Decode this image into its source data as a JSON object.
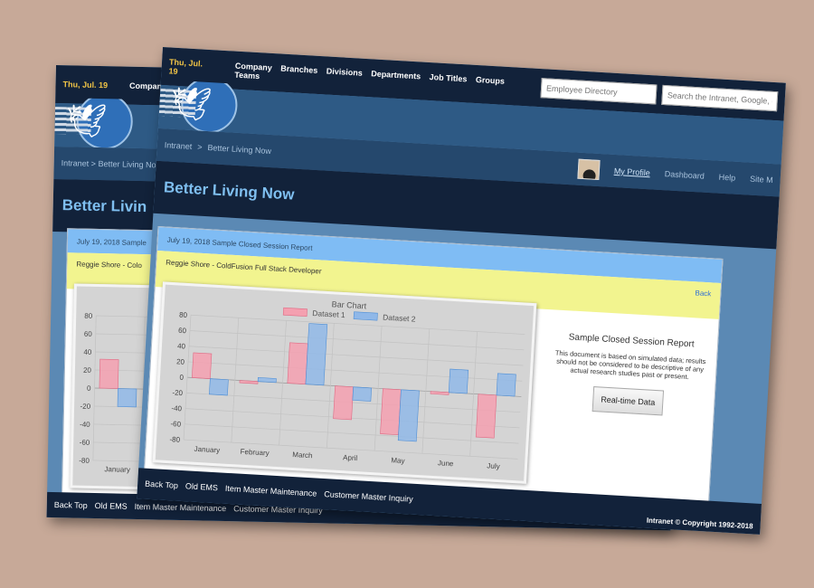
{
  "topbar": {
    "date": "Thu, Jul. 19",
    "nav": [
      "Company",
      "Branches",
      "Divisions",
      "Departments",
      "Job Titles",
      "Groups",
      "Teams"
    ],
    "directory_placeholder": "Employee Directory",
    "search_placeholder": "Search the Intranet, Google, or"
  },
  "breadcrumb": {
    "home": "Intranet",
    "sep": ">",
    "current": "Better Living Now"
  },
  "usermenu": {
    "profile": "My Profile",
    "dashboard": "Dashboard",
    "help": "Help",
    "sitemap": "Site M"
  },
  "page_title": "Better Living Now",
  "report": {
    "header": "July 19, 2018 Sample Closed Session Report",
    "author": "Reggie Shore - ColdFusion Full Stack Developer",
    "back": "Back",
    "title": "Sample Closed Session Report",
    "description": "This document is based on simulated data; results should not be considered to be descriptive of any actual research studies past or present.",
    "button": "Real-time Data"
  },
  "footer": {
    "links": [
      "Back Top",
      "Old EMS",
      "Item Master Maintenance",
      "Customer Master Inquiry"
    ],
    "copyright": "Intranet © Copyright 1992-2018"
  },
  "back_window": {
    "date": "Thu, Jul. 19",
    "nav0": "Company",
    "crumb": "Intranet  >  Better Living Nov",
    "title": "Better Livin",
    "header": "July 19, 2018 Sample",
    "author": "Reggie Shore - Colo",
    "footer_links": [
      "Back Top",
      "Old EMS",
      "Item Master Maintenance",
      "Customer Master Inquiry"
    ]
  },
  "colors": {
    "dataset1": "#f4a0b0",
    "dataset2": "#90b8e8",
    "accent": "#7fbff0"
  },
  "chart_data": {
    "type": "bar",
    "title": "Bar Chart",
    "categories": [
      "January",
      "February",
      "March",
      "April",
      "May",
      "June",
      "July"
    ],
    "series": [
      {
        "name": "Dataset 1",
        "values": [
          32,
          -3,
          52,
          -42,
          -58,
          -3,
          -55
        ]
      },
      {
        "name": "Dataset 2",
        "values": [
          -20,
          5,
          78,
          -17,
          -65,
          30,
          28
        ]
      }
    ],
    "ylim": [
      -80,
      80
    ],
    "yticks": [
      80,
      60,
      40,
      20,
      0,
      -20,
      -40,
      -60,
      -80
    ],
    "legend": "top",
    "grid": true
  }
}
